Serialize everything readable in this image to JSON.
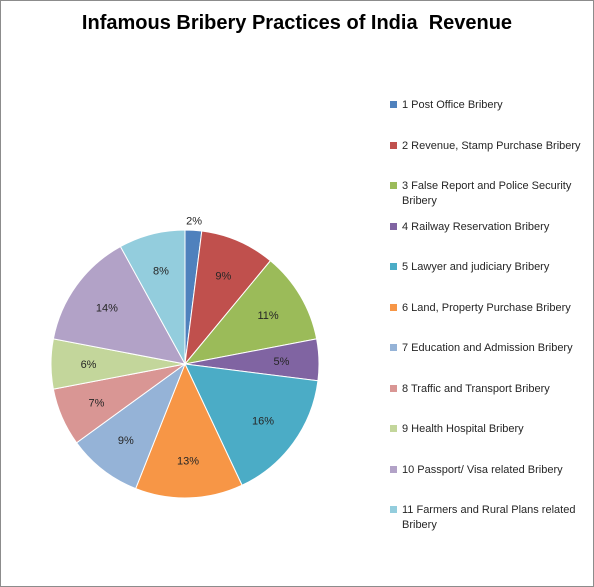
{
  "chart_data": {
    "type": "pie",
    "title": "Infamous Bribery Practices of India  Revenue",
    "legend_position": "right",
    "slices": [
      {
        "label": "1 Post Office Bribery",
        "value": 2,
        "value_label": "2%",
        "color": "#4f81bd"
      },
      {
        "label": "2 Revenue, Stamp Purchase Bribery",
        "value": 9,
        "value_label": "9%",
        "color": "#c0504d"
      },
      {
        "label": "3 False Report and Police Security Bribery",
        "value": 11,
        "value_label": "11%",
        "color": "#9bbb59"
      },
      {
        "label": "4 Railway Reservation Bribery",
        "value": 5,
        "value_label": "5%",
        "color": "#8064a2"
      },
      {
        "label": "5 Lawyer and judiciary Bribery",
        "value": 16,
        "value_label": "16%",
        "color": "#4bacc6"
      },
      {
        "label": "6 Land, Property Purchase Bribery",
        "value": 13,
        "value_label": "13%",
        "color": "#f79646"
      },
      {
        "label": "7 Education and Admission Bribery",
        "value": 9,
        "value_label": "9%",
        "color": "#95b3d7"
      },
      {
        "label": "8 Traffic and Transport Bribery",
        "value": 7,
        "value_label": "7%",
        "color": "#d99694"
      },
      {
        "label": "9 Health Hospital Bribery",
        "value": 6,
        "value_label": "6%",
        "color": "#c3d69b"
      },
      {
        "label": "10 Passport/ Visa related Bribery",
        "value": 14,
        "value_label": "14%",
        "color": "#b2a2c7"
      },
      {
        "label": "11 Farmers and Rural Plans related Bribery",
        "value": 8,
        "value_label": "8%",
        "color": "#93cddd"
      }
    ]
  }
}
